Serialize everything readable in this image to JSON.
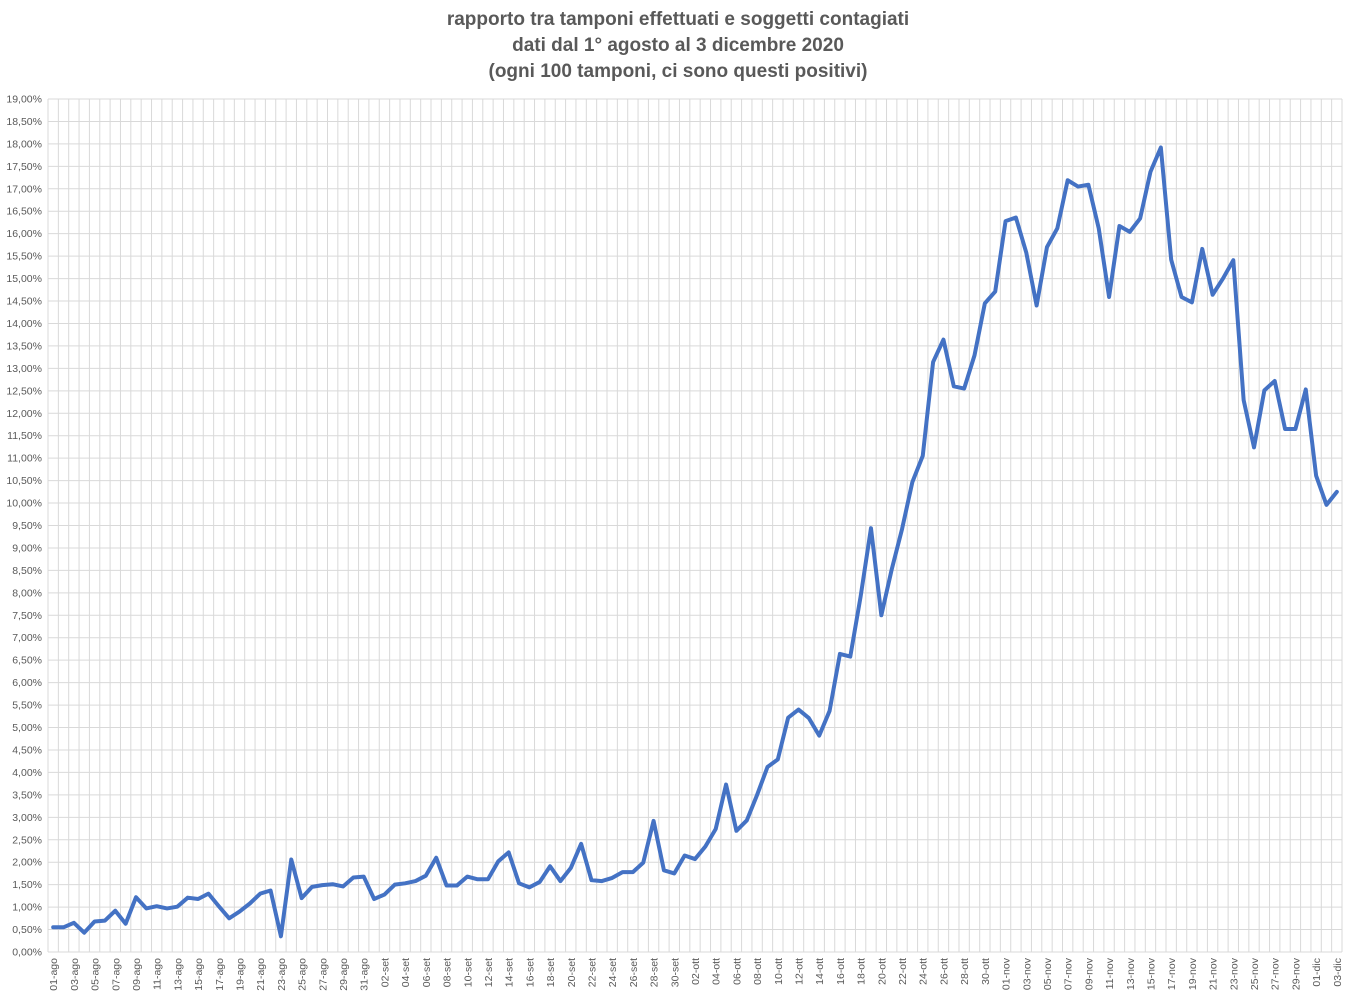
{
  "chart_data": {
    "type": "line",
    "title": [
      "rapporto tra tamponi effettuati e soggetti contagiati",
      "dati dal 1° agosto al 3 dicembre 2020",
      "(ogni 100 tamponi, ci sono questi positivi)"
    ],
    "xlabel": "",
    "ylabel": "",
    "ylim": [
      0,
      19
    ],
    "ytick_step": 0.5,
    "y_format": "percent-comma-2",
    "grid": true,
    "legend": "none",
    "line_color": "#4472C4",
    "categories": [
      "01-ago",
      "02-ago",
      "03-ago",
      "04-ago",
      "05-ago",
      "06-ago",
      "07-ago",
      "08-ago",
      "09-ago",
      "10-ago",
      "11-ago",
      "12-ago",
      "13-ago",
      "14-ago",
      "15-ago",
      "16-ago",
      "17-ago",
      "18-ago",
      "19-ago",
      "20-ago",
      "21-ago",
      "22-ago",
      "23-ago",
      "24-ago",
      "25-ago",
      "26-ago",
      "27-ago",
      "28-ago",
      "29-ago",
      "30-ago",
      "31-ago",
      "01-set",
      "02-set",
      "03-set",
      "04-set",
      "05-set",
      "06-set",
      "07-set",
      "08-set",
      "09-set",
      "10-set",
      "11-set",
      "12-set",
      "13-set",
      "14-set",
      "15-set",
      "16-set",
      "17-set",
      "18-set",
      "19-set",
      "20-set",
      "21-set",
      "22-set",
      "23-set",
      "24-set",
      "25-set",
      "26-set",
      "27-set",
      "28-set",
      "29-set",
      "30-set",
      "01-ott",
      "02-ott",
      "03-ott",
      "04-ott",
      "05-ott",
      "06-ott",
      "07-ott",
      "08-ott",
      "09-ott",
      "10-ott",
      "11-ott",
      "12-ott",
      "13-ott",
      "14-ott",
      "15-ott",
      "16-ott",
      "17-ott",
      "18-ott",
      "19-ott",
      "20-ott",
      "21-ott",
      "22-ott",
      "23-ott",
      "24-ott",
      "25-ott",
      "26-ott",
      "27-ott",
      "28-ott",
      "29-ott",
      "30-ott",
      "31-ott",
      "01-nov",
      "02-nov",
      "03-nov",
      "04-nov",
      "05-nov",
      "06-nov",
      "07-nov",
      "08-nov",
      "09-nov",
      "10-nov",
      "11-nov",
      "12-nov",
      "13-nov",
      "14-nov",
      "15-nov",
      "16-nov",
      "17-nov",
      "18-nov",
      "19-nov",
      "20-nov",
      "21-nov",
      "22-nov",
      "23-nov",
      "24-nov",
      "25-nov",
      "26-nov",
      "27-nov",
      "28-nov",
      "29-nov",
      "30-nov",
      "01-dic",
      "02-dic",
      "03-dic"
    ],
    "tick_every": 2,
    "values": [
      0.55,
      0.55,
      0.65,
      0.43,
      0.68,
      0.7,
      0.92,
      0.63,
      1.22,
      0.97,
      1.02,
      0.97,
      1.01,
      1.21,
      1.18,
      1.3,
      1.02,
      0.75,
      0.9,
      1.08,
      1.3,
      1.37,
      0.35,
      2.06,
      1.2,
      1.45,
      1.49,
      1.51,
      1.46,
      1.66,
      1.68,
      1.18,
      1.28,
      1.5,
      1.53,
      1.58,
      1.7,
      2.1,
      1.48,
      1.48,
      1.68,
      1.62,
      1.62,
      2.02,
      2.22,
      1.53,
      1.44,
      1.56,
      1.91,
      1.58,
      1.87,
      2.41,
      1.6,
      1.58,
      1.65,
      1.78,
      1.78,
      1.99,
      2.92,
      1.82,
      1.75,
      2.15,
      2.07,
      2.35,
      2.74,
      3.73,
      2.7,
      2.93,
      3.5,
      4.12,
      4.29,
      5.22,
      5.4,
      5.21,
      4.82,
      5.37,
      6.64,
      6.58,
      7.92,
      9.44,
      7.5,
      8.52,
      9.42,
      10.47,
      11.05,
      13.14,
      13.64,
      12.6,
      12.55,
      13.29,
      14.45,
      14.71,
      16.28,
      16.36,
      15.58,
      14.4,
      15.7,
      16.12,
      17.19,
      17.05,
      17.09,
      16.12,
      14.59,
      16.17,
      16.04,
      16.34,
      17.38,
      17.92,
      15.42,
      14.59,
      14.47,
      15.66,
      14.64,
      15.0,
      15.41,
      12.29,
      11.24,
      12.51,
      12.72,
      11.65,
      11.65,
      12.53,
      10.61,
      9.96,
      10.25
    ]
  }
}
